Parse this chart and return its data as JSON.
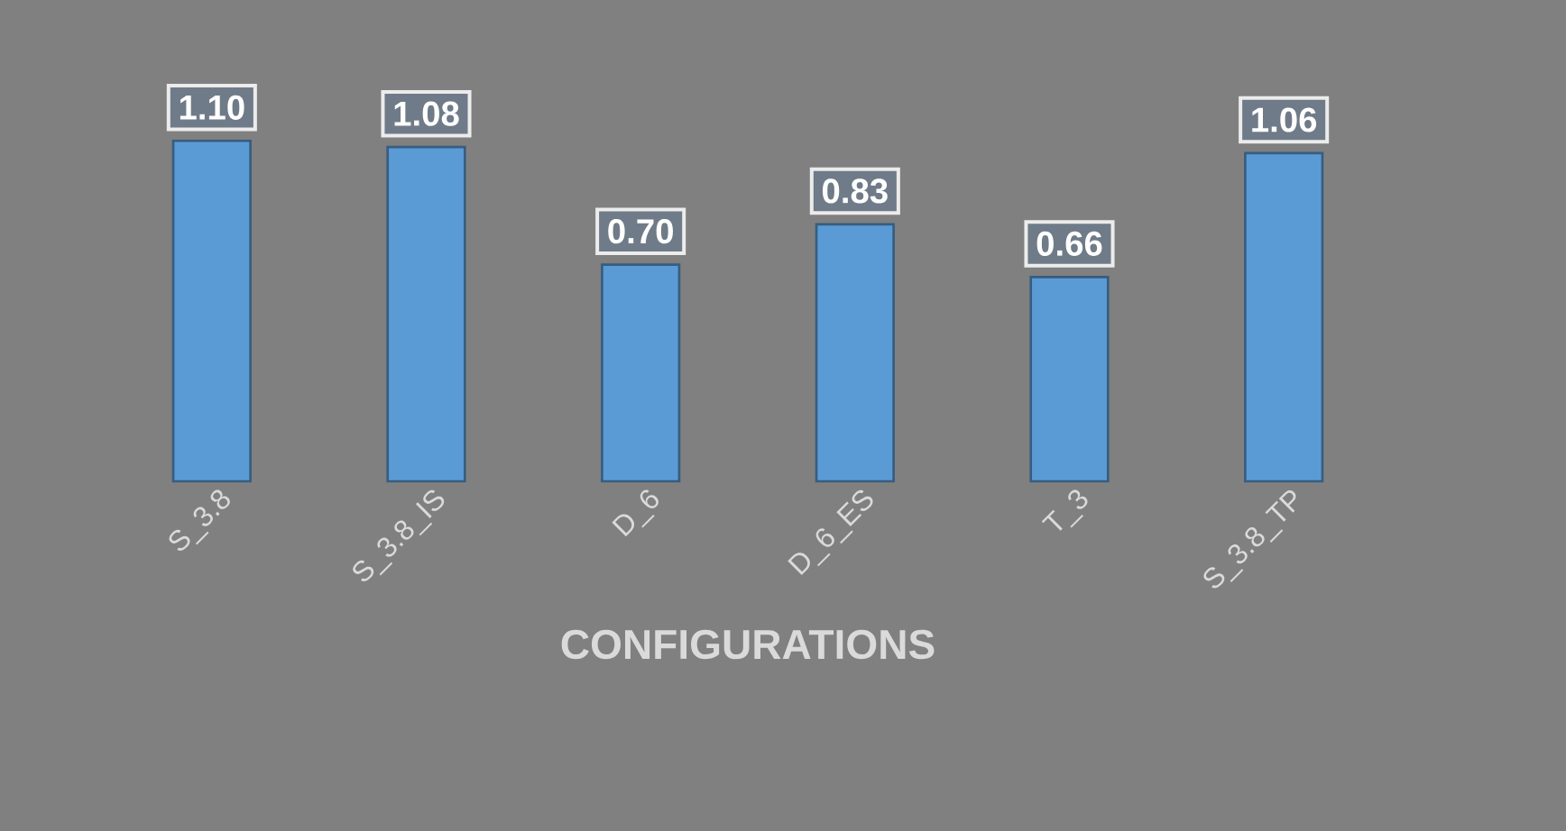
{
  "chart_data": {
    "type": "bar",
    "xlabel": "CONFIGURATIONS",
    "categories": [
      "S_3.8",
      "S_3.8_IS",
      "D_6",
      "D_6_ES",
      "T_3",
      "S_3.8_TP"
    ],
    "values": [
      1.1,
      1.08,
      0.7,
      0.83,
      0.66,
      1.06
    ],
    "value_labels": [
      "1.10",
      "1.08",
      "0.70",
      "0.83",
      "0.66",
      "1.06"
    ],
    "color": "#5b9bd5"
  }
}
